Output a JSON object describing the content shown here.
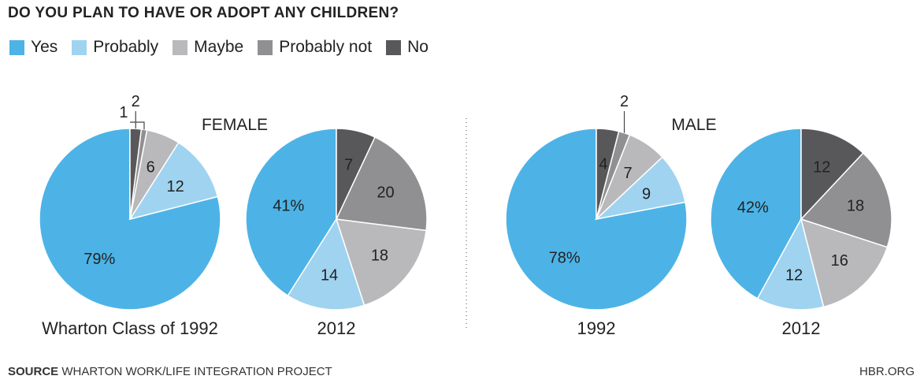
{
  "title": "DO YOU PLAN TO HAVE OR ADOPT ANY CHILDREN?",
  "legend": [
    {
      "label": "Yes",
      "color": "#4db3e6"
    },
    {
      "label": "Probably",
      "color": "#9fd3f0"
    },
    {
      "label": "Maybe",
      "color": "#b9b9bc"
    },
    {
      "label": "Probably not",
      "color": "#909093"
    },
    {
      "label": "No",
      "color": "#58585b"
    }
  ],
  "group_labels": {
    "female": "FEMALE",
    "male": "MALE"
  },
  "footer": {
    "source_label": "SOURCE",
    "source_text": "WHARTON WORK/LIFE INTEGRATION PROJECT",
    "credit": "HBR.ORG"
  },
  "chart_data": [
    {
      "type": "pie",
      "group": "FEMALE",
      "caption": "Wharton Class of 1992",
      "categories": [
        "Yes",
        "Probably",
        "Maybe",
        "Probably not",
        "No"
      ],
      "values": [
        79,
        12,
        6,
        1,
        2
      ],
      "labels": [
        "79%",
        "12",
        "6",
        "1",
        "2"
      ]
    },
    {
      "type": "pie",
      "group": "FEMALE",
      "caption": "2012",
      "categories": [
        "Yes",
        "Probably",
        "Maybe",
        "Probably not",
        "No"
      ],
      "values": [
        41,
        14,
        18,
        20,
        7
      ],
      "labels": [
        "41%",
        "14",
        "18",
        "20",
        "7"
      ]
    },
    {
      "type": "pie",
      "group": "MALE",
      "caption": "1992",
      "categories": [
        "Yes",
        "Probably",
        "Maybe",
        "Probably not",
        "No"
      ],
      "values": [
        78,
        9,
        7,
        2,
        4
      ],
      "labels": [
        "78%",
        "9",
        "7",
        "2",
        "4"
      ]
    },
    {
      "type": "pie",
      "group": "MALE",
      "caption": "2012",
      "categories": [
        "Yes",
        "Probably",
        "Maybe",
        "Probably not",
        "No"
      ],
      "values": [
        42,
        12,
        16,
        18,
        12
      ],
      "labels": [
        "42%",
        "12",
        "16",
        "18",
        "12"
      ]
    }
  ]
}
